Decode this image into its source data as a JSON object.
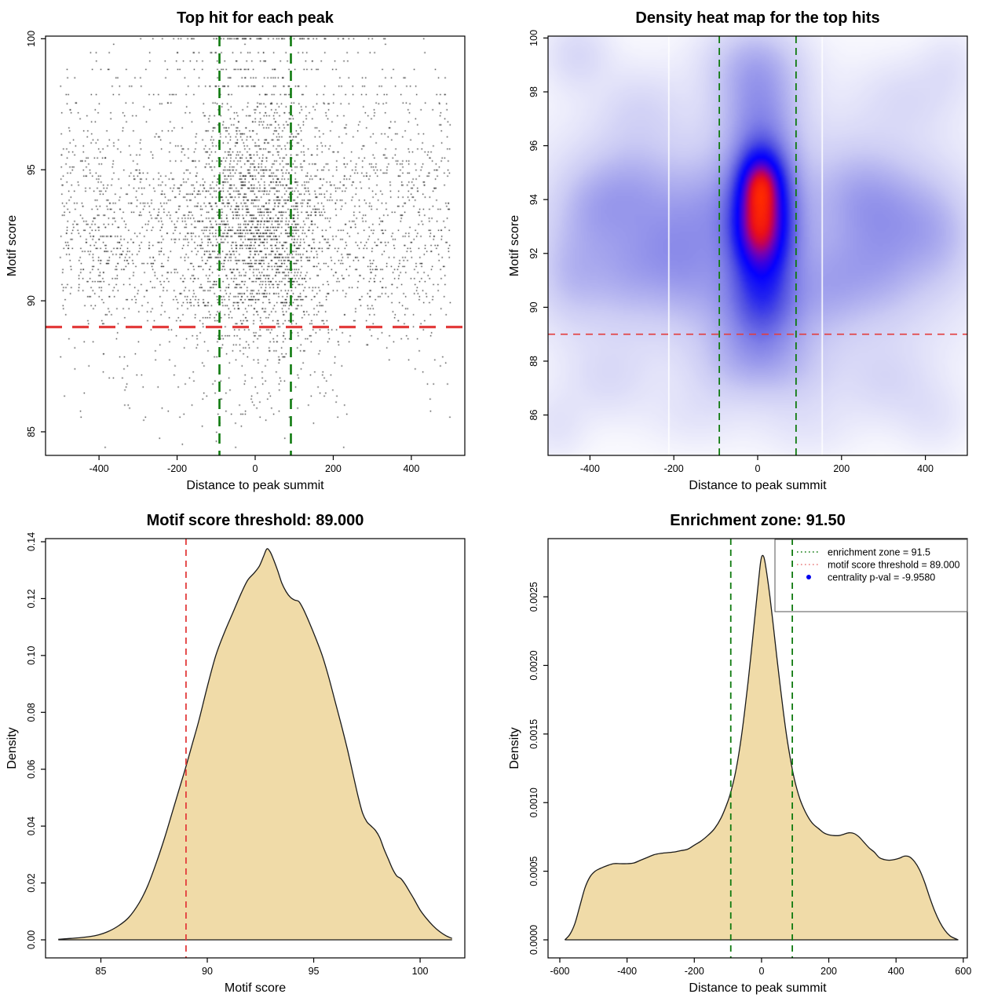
{
  "colors": {
    "background": "#ffffff",
    "axis": "#000000",
    "point": "#000000",
    "red_line": "#e33c3c",
    "green_line": "#0f7a0f",
    "wheat_fill": "#f0dba8",
    "curve_stroke": "#1a1a1a",
    "legend_border": "#555555",
    "legend_dot_blue": "#0000ee"
  },
  "chart_data": [
    {
      "id": "top_hit_scatter",
      "type": "scatter",
      "title": "Top hit for each peak",
      "xlabel": "Distance to peak summit",
      "ylabel": "Motif score",
      "xlim": [
        -537,
        537
      ],
      "ylim": [
        84.1,
        100.1
      ],
      "xticks": [
        -400,
        -200,
        0,
        200,
        400
      ],
      "xtick_labels": [
        "-400",
        "-200",
        "0",
        "200",
        "400"
      ],
      "yticks": [
        85,
        90,
        95,
        100
      ],
      "ytick_labels": [
        "85",
        "90",
        "95",
        "100"
      ],
      "grid": false,
      "reference_lines": [
        {
          "kind": "vline",
          "x": -91.5,
          "color": "#0f7a0f",
          "width": 2.6,
          "dash": [
            13,
            9
          ]
        },
        {
          "kind": "vline",
          "x": 91.5,
          "color": "#0f7a0f",
          "width": 2.6,
          "dash": [
            13,
            9
          ]
        },
        {
          "kind": "hline",
          "y": 89,
          "color": "#e33c3c",
          "width": 3.2,
          "dash": [
            21,
            13
          ]
        }
      ],
      "point_generator": {
        "seed": 20240417,
        "n": 4300,
        "x_mixture": [
          {
            "type": "uniform",
            "min": -500,
            "max": 500,
            "w": 0.58
          },
          {
            "type": "normal",
            "mean": 12,
            "sd": 95,
            "w": 0.42
          }
        ],
        "y_mixture": [
          {
            "mean": 92.3,
            "sd": 1.9,
            "w": 0.5
          },
          {
            "mean": 94.3,
            "sd": 1.4,
            "w": 0.2
          },
          {
            "mean": 90.6,
            "sd": 1.6,
            "w": 0.12
          },
          {
            "mean": 96.3,
            "sd": 1.1,
            "w": 0.07
          },
          {
            "mean": 97.7,
            "sd": 0.55,
            "w": 0.045
          },
          {
            "mean": 99.0,
            "sd": 0.45,
            "w": 0.03
          },
          {
            "mean": 87.4,
            "sd": 1.1,
            "w": 0.025
          },
          {
            "mean": 85.7,
            "sd": 0.8,
            "w": 0.01
          }
        ],
        "quantize_step": 0.115,
        "top_band": {
          "threshold": 97.55,
          "step": 0.32
        },
        "cap_row": {
          "y": 100,
          "n": 70,
          "x_sd": 130
        },
        "x_clip": [
          -500,
          500
        ],
        "y_clip": [
          84.2,
          100
        ]
      }
    },
    {
      "id": "density_heatmap",
      "type": "heatmap",
      "title": "Density heat map for the top hits",
      "xlabel": "Distance to peak summit",
      "ylabel": "Motif score",
      "xlim": [
        -500,
        500
      ],
      "ylim": [
        84.5,
        100.07
      ],
      "xticks": [
        -400,
        -200,
        0,
        200,
        400
      ],
      "xtick_labels": [
        "-400",
        "-200",
        "0",
        "200",
        "400"
      ],
      "yticks": [
        86,
        88,
        90,
        92,
        94,
        96,
        98,
        100
      ],
      "ytick_labels": [
        "86",
        "88",
        "90",
        "92",
        "94",
        "96",
        "98",
        "100"
      ],
      "reference_lines": [
        {
          "kind": "vline",
          "x": -91.5,
          "color": "#0f7a0f",
          "width": 1.8,
          "dash": [
            9,
            6
          ]
        },
        {
          "kind": "vline",
          "x": 91.5,
          "color": "#0f7a0f",
          "width": 1.8,
          "dash": [
            9,
            6
          ]
        },
        {
          "kind": "hline",
          "y": 89,
          "color": "#e33c3c",
          "width": 1.6,
          "dash": [
            9,
            7
          ]
        }
      ],
      "artifact_white_lines_x": [
        -212,
        154
      ],
      "gamma": 0.6,
      "kernels": [
        [
          12,
          92.9,
          58,
          2.3,
          1.0
        ],
        [
          8,
          94.6,
          40,
          1.0,
          0.72
        ],
        [
          8,
          94.6,
          26,
          0.55,
          0.25
        ],
        [
          4,
          92.9,
          40,
          1.0,
          0.66
        ],
        [
          0,
          97.6,
          70,
          1.3,
          0.3
        ],
        [
          -10,
          99.2,
          80,
          1.0,
          0.22
        ],
        [
          10,
          90.0,
          80,
          1.0,
          0.3
        ],
        [
          0,
          88.3,
          90,
          1.0,
          0.15
        ],
        [
          0,
          92.7,
          300,
          3.2,
          0.16
        ],
        [
          -310,
          92.6,
          160,
          2.8,
          0.16
        ],
        [
          300,
          92.4,
          160,
          2.8,
          0.15
        ],
        [
          -430,
          99.4,
          55,
          0.9,
          0.14
        ],
        [
          -300,
          94.4,
          70,
          1.2,
          0.18
        ],
        [
          -395,
          93.7,
          60,
          1.1,
          0.16
        ],
        [
          -445,
          91.2,
          55,
          1.2,
          0.16
        ],
        [
          -310,
          91.3,
          70,
          1.2,
          0.16
        ],
        [
          -210,
          92.4,
          60,
          1.4,
          0.16
        ],
        [
          -120,
          93.6,
          55,
          1.4,
          0.18
        ],
        [
          -150,
          91.0,
          60,
          1.2,
          0.14
        ],
        [
          -280,
          97.4,
          70,
          1.0,
          0.1
        ],
        [
          -360,
          87.3,
          70,
          1.0,
          0.1
        ],
        [
          -480,
          85.6,
          50,
          0.9,
          0.09
        ],
        [
          235,
          94.2,
          65,
          1.2,
          0.17
        ],
        [
          330,
          93.5,
          70,
          1.3,
          0.18
        ],
        [
          430,
          92.7,
          60,
          1.3,
          0.17
        ],
        [
          280,
          91.3,
          70,
          1.2,
          0.16
        ],
        [
          175,
          90.7,
          55,
          1.2,
          0.15
        ],
        [
          360,
          97.8,
          80,
          1.0,
          0.1
        ],
        [
          460,
          99.0,
          50,
          0.9,
          0.08
        ],
        [
          310,
          87.2,
          75,
          1.0,
          0.11
        ],
        [
          420,
          85.9,
          60,
          0.9,
          0.08
        ],
        [
          -60,
          87.8,
          70,
          1.0,
          0.12
        ],
        [
          90,
          87.6,
          70,
          1.0,
          0.12
        ],
        [
          -150,
          86.0,
          80,
          0.9,
          0.07
        ],
        [
          120,
          85.6,
          80,
          0.9,
          0.07
        ]
      ],
      "palette": [
        [
          0.0,
          "#ffffff"
        ],
        [
          0.07,
          "#f5f5fd"
        ],
        [
          0.16,
          "#e2e2f9"
        ],
        [
          0.26,
          "#cbcbf4"
        ],
        [
          0.36,
          "#a9a9ee"
        ],
        [
          0.46,
          "#8383e8"
        ],
        [
          0.56,
          "#5252e2"
        ],
        [
          0.64,
          "#2121ef"
        ],
        [
          0.71,
          "#0400ff"
        ],
        [
          0.78,
          "#3d00dd"
        ],
        [
          0.84,
          "#7c00ad"
        ],
        [
          0.89,
          "#bb0060"
        ],
        [
          0.94,
          "#ea0f18"
        ],
        [
          1.0,
          "#ff2a00"
        ]
      ]
    },
    {
      "id": "motif_score_density",
      "type": "area",
      "title": "Motif score threshold: 89.000",
      "xlabel": "Motif score",
      "ylabel": "Density",
      "xlim": [
        82.4,
        102.1
      ],
      "ylim": [
        -0.00635,
        0.1411
      ],
      "xticks": [
        85,
        90,
        95,
        100
      ],
      "xtick_labels": [
        "85",
        "90",
        "95",
        "100"
      ],
      "yticks": [
        0,
        0.02,
        0.04,
        0.06,
        0.08,
        0.1,
        0.12,
        0.14
      ],
      "ytick_labels": [
        "0.00",
        "0.02",
        "0.04",
        "0.06",
        "0.08",
        "0.10",
        "0.12",
        "0.14"
      ],
      "reference_lines": [
        {
          "kind": "vline",
          "x": 89,
          "color": "#e33c3c",
          "width": 1.8,
          "dash": [
            8,
            6
          ]
        }
      ],
      "curve": [
        [
          83,
          0.0002
        ],
        [
          83.6,
          0.0005
        ],
        [
          84.2,
          0.0009
        ],
        [
          84.8,
          0.0016
        ],
        [
          85.3,
          0.0028
        ],
        [
          85.8,
          0.0048
        ],
        [
          86.3,
          0.0078
        ],
        [
          86.8,
          0.013
        ],
        [
          87.2,
          0.019
        ],
        [
          87.6,
          0.027
        ],
        [
          88.0,
          0.036
        ],
        [
          88.4,
          0.046
        ],
        [
          88.8,
          0.056
        ],
        [
          89.0,
          0.061
        ],
        [
          89.3,
          0.069
        ],
        [
          89.6,
          0.077
        ],
        [
          90.0,
          0.089
        ],
        [
          90.4,
          0.1
        ],
        [
          90.8,
          0.108
        ],
        [
          91.2,
          0.115
        ],
        [
          91.6,
          0.122
        ],
        [
          91.9,
          0.1265
        ],
        [
          92.2,
          0.129
        ],
        [
          92.45,
          0.1315
        ],
        [
          92.65,
          0.135
        ],
        [
          92.8,
          0.1375
        ],
        [
          92.95,
          0.1365
        ],
        [
          93.1,
          0.134
        ],
        [
          93.3,
          0.13
        ],
        [
          93.5,
          0.1255
        ],
        [
          93.7,
          0.1225
        ],
        [
          93.9,
          0.1205
        ],
        [
          94.1,
          0.1195
        ],
        [
          94.3,
          0.119
        ],
        [
          94.5,
          0.1165
        ],
        [
          94.8,
          0.1115
        ],
        [
          95.1,
          0.106
        ],
        [
          95.4,
          0.1
        ],
        [
          95.7,
          0.0925
        ],
        [
          96.0,
          0.084
        ],
        [
          96.3,
          0.0755
        ],
        [
          96.6,
          0.0665
        ],
        [
          96.9,
          0.0565
        ],
        [
          97.1,
          0.05
        ],
        [
          97.3,
          0.0445
        ],
        [
          97.5,
          0.0415
        ],
        [
          97.7,
          0.04
        ],
        [
          97.9,
          0.0385
        ],
        [
          98.1,
          0.036
        ],
        [
          98.3,
          0.032
        ],
        [
          98.5,
          0.0285
        ],
        [
          98.7,
          0.025
        ],
        [
          98.9,
          0.0225
        ],
        [
          99.1,
          0.0215
        ],
        [
          99.3,
          0.0195
        ],
        [
          99.5,
          0.017
        ],
        [
          99.7,
          0.0145
        ],
        [
          100.0,
          0.0105
        ],
        [
          100.3,
          0.0075
        ],
        [
          100.6,
          0.005
        ],
        [
          100.9,
          0.003
        ],
        [
          101.2,
          0.0015
        ],
        [
          101.5,
          0.0005
        ]
      ]
    },
    {
      "id": "distance_density",
      "type": "area",
      "title": "Enrichment zone: 91.50",
      "xlabel": "Distance to peak summit",
      "ylabel": "Density",
      "xlim": [
        -635,
        612
      ],
      "ylim": [
        -0.0001316,
        0.002924
      ],
      "xticks": [
        -600,
        -400,
        -200,
        0,
        200,
        400,
        600
      ],
      "xtick_labels": [
        "-600",
        "-400",
        "-200",
        "0",
        "200",
        "400",
        "600"
      ],
      "yticks": [
        0,
        0.0005,
        0.001,
        0.0015,
        0.002,
        0.0025
      ],
      "ytick_labels": [
        "0.0000",
        "0.0005",
        "0.0010",
        "0.0015",
        "0.0020",
        "0.0025"
      ],
      "reference_lines": [
        {
          "kind": "vline",
          "x": -91.5,
          "color": "#0f7a0f",
          "width": 1.8,
          "dash": [
            8,
            6
          ]
        },
        {
          "kind": "vline",
          "x": 91.5,
          "color": "#0f7a0f",
          "width": 1.8,
          "dash": [
            8,
            6
          ]
        }
      ],
      "curve": [
        [
          -585,
          0.0
        ],
        [
          -570,
          4e-05
        ],
        [
          -555,
          0.00012
        ],
        [
          -540,
          0.00025
        ],
        [
          -525,
          0.00038
        ],
        [
          -510,
          0.00046
        ],
        [
          -495,
          0.0005
        ],
        [
          -480,
          0.00052
        ],
        [
          -460,
          0.00054
        ],
        [
          -440,
          0.000555
        ],
        [
          -420,
          0.000555
        ],
        [
          -400,
          0.000555
        ],
        [
          -380,
          0.00056
        ],
        [
          -360,
          0.00058
        ],
        [
          -340,
          0.0006
        ],
        [
          -320,
          0.00062
        ],
        [
          -300,
          0.00063
        ],
        [
          -280,
          0.000635
        ],
        [
          -260,
          0.00064
        ],
        [
          -240,
          0.00065
        ],
        [
          -220,
          0.00066
        ],
        [
          -200,
          0.00069
        ],
        [
          -180,
          0.00072
        ],
        [
          -160,
          0.00076
        ],
        [
          -140,
          0.00081
        ],
        [
          -120,
          0.00089
        ],
        [
          -100,
          0.00101
        ],
        [
          -90,
          0.00109
        ],
        [
          -80,
          0.00119
        ],
        [
          -70,
          0.00132
        ],
        [
          -60,
          0.00148
        ],
        [
          -50,
          0.00167
        ],
        [
          -40,
          0.00188
        ],
        [
          -30,
          0.00211
        ],
        [
          -20,
          0.00235
        ],
        [
          -10,
          0.00259
        ],
        [
          -3,
          0.00275
        ],
        [
          2,
          0.0028
        ],
        [
          8,
          0.00278
        ],
        [
          15,
          0.00268
        ],
        [
          25,
          0.0025
        ],
        [
          35,
          0.00229
        ],
        [
          45,
          0.00207
        ],
        [
          55,
          0.00186
        ],
        [
          65,
          0.00166
        ],
        [
          75,
          0.00148
        ],
        [
          85,
          0.00133
        ],
        [
          95,
          0.0012
        ],
        [
          105,
          0.0011
        ],
        [
          115,
          0.00102
        ],
        [
          125,
          0.00096
        ],
        [
          135,
          0.00091
        ],
        [
          145,
          0.00087
        ],
        [
          155,
          0.00084
        ],
        [
          170,
          0.00081
        ],
        [
          185,
          0.00078
        ],
        [
          200,
          0.000765
        ],
        [
          215,
          0.00076
        ],
        [
          230,
          0.00076
        ],
        [
          245,
          0.00077
        ],
        [
          260,
          0.00078
        ],
        [
          275,
          0.000775
        ],
        [
          290,
          0.00075
        ],
        [
          305,
          0.00071
        ],
        [
          320,
          0.00067
        ],
        [
          335,
          0.00064
        ],
        [
          350,
          0.0006
        ],
        [
          365,
          0.000585
        ],
        [
          380,
          0.00058
        ],
        [
          395,
          0.000585
        ],
        [
          410,
          0.000595
        ],
        [
          425,
          0.00061
        ],
        [
          440,
          0.000605
        ],
        [
          455,
          0.00057
        ],
        [
          470,
          0.00051
        ],
        [
          485,
          0.00042
        ],
        [
          500,
          0.00031
        ],
        [
          515,
          0.00021
        ],
        [
          530,
          0.00013
        ],
        [
          545,
          7e-05
        ],
        [
          560,
          3e-05
        ],
        [
          575,
          1e-05
        ],
        [
          585,
          0.0
        ]
      ],
      "legend": {
        "entries": [
          {
            "label": "enrichment zone = 91.5",
            "marker": "dotted-line",
            "color": "#0f7a0f"
          },
          {
            "label": "motif score threshold = 89.000",
            "marker": "dotted-line",
            "color": "#e87a7a"
          },
          {
            "label": "centrality p-val = -9.9580",
            "marker": "dot",
            "color": "#0000ee"
          }
        ]
      }
    }
  ]
}
